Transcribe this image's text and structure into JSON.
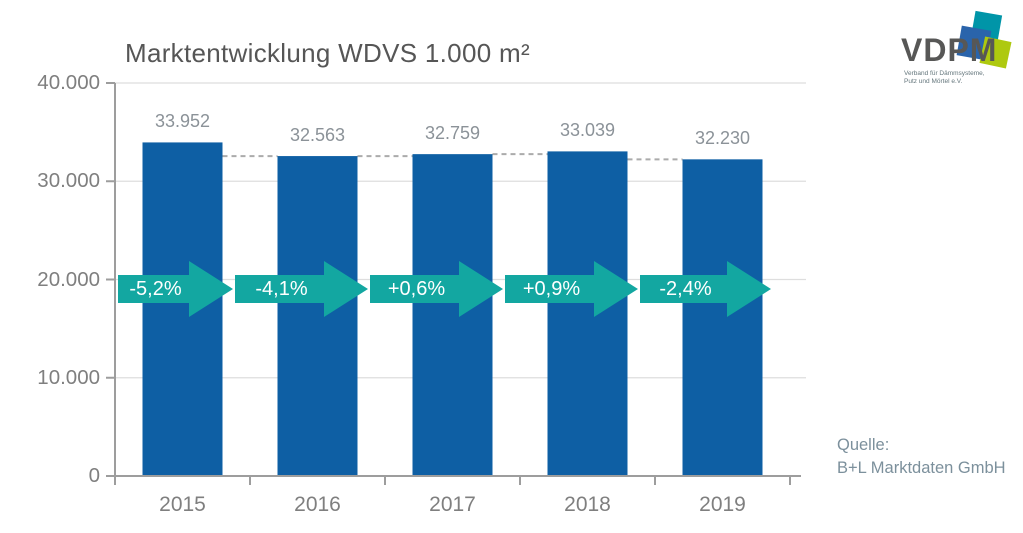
{
  "title": "Marktentwicklung WDVS 1.000 m²",
  "logo": {
    "name": "VDPM",
    "tagline_line1": "Verband für Dämmsysteme,",
    "tagline_line2": "Putz und Mörtel e.V.",
    "colors": {
      "square_blue": "#2a64ab",
      "square_teal": "#0095a8",
      "square_lime": "#aec90f",
      "wordmark": "#575756"
    }
  },
  "source": {
    "label": "Quelle:",
    "name": "B+L Marktdaten GmbH"
  },
  "chart_data": {
    "type": "bar",
    "title": "Marktentwicklung WDVS 1.000 m²",
    "categories": [
      "2015",
      "2016",
      "2017",
      "2018",
      "2019"
    ],
    "values": [
      33952,
      32563,
      32759,
      33039,
      32230
    ],
    "value_labels": [
      "33.952",
      "32.563",
      "32.759",
      "33.039",
      "32.230"
    ],
    "growth_labels": [
      "-5,2%",
      "-4,1%",
      "+0,6%",
      "+0,9%",
      "-2,4%"
    ],
    "y_ticks": [
      0,
      10000,
      20000,
      30000,
      40000
    ],
    "y_tick_labels": [
      "0",
      "10.000",
      "20.000",
      "30.000",
      "40.000"
    ],
    "ylim": [
      0,
      40000
    ],
    "xlabel": "",
    "ylabel": "",
    "unit": "1.000 m²",
    "grid": true,
    "legend": "none",
    "bar_color": "#0e5fa4",
    "arrow_color": "#13a7a1",
    "grid_color": "#dedede",
    "axis_color": "#9d9d9d",
    "dash_color": "#ababab",
    "value_label_color": "#8b9298",
    "tick_label_color": "#7f7f7f",
    "growth_text_color": "#ffffff"
  }
}
